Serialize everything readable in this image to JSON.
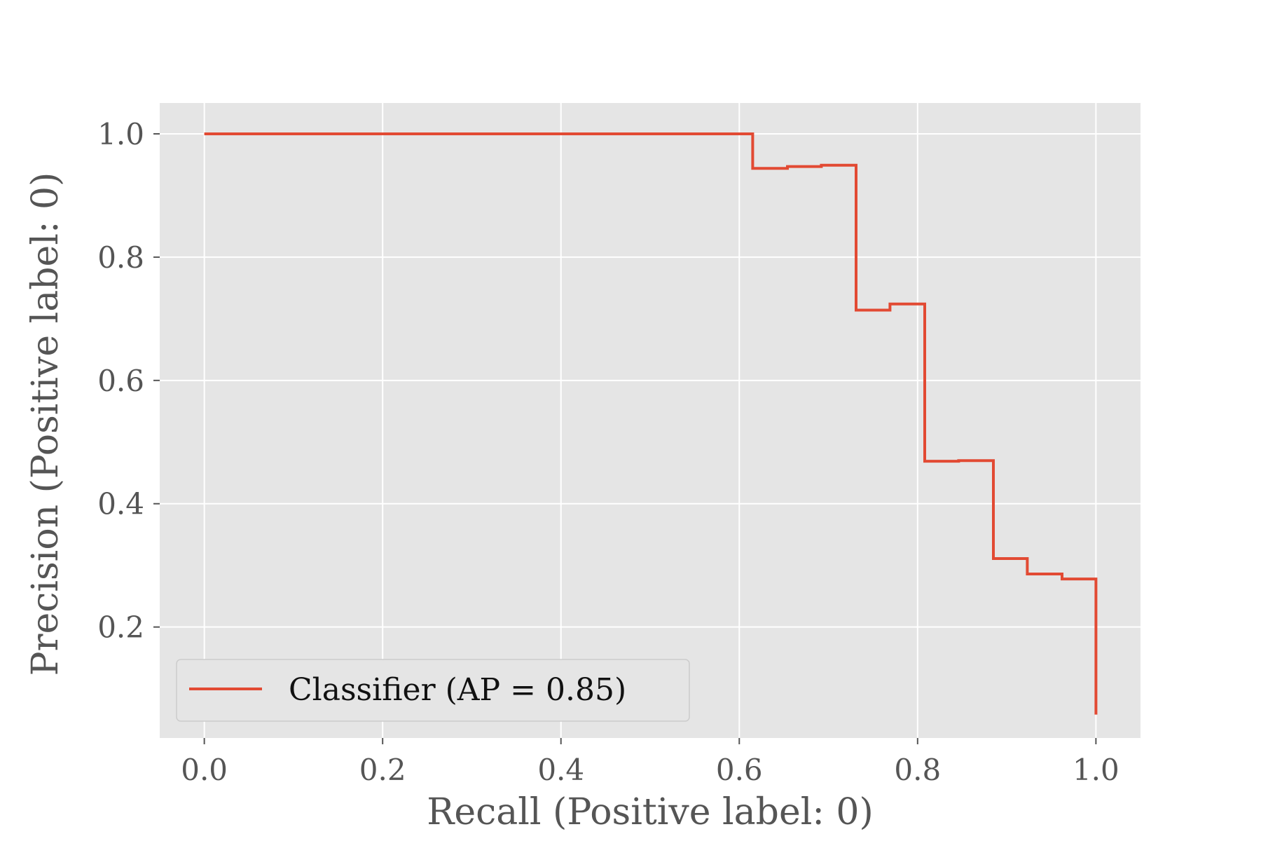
{
  "chart_data": {
    "type": "line",
    "step": true,
    "style": "ggplot",
    "xlabel": "Recall (Positive label: 0)",
    "ylabel": "Precision (Positive label: 0)",
    "xlim": [
      -0.05,
      1.05
    ],
    "ylim": [
      0.02,
      1.05
    ],
    "xticks": [
      0.0,
      0.2,
      0.4,
      0.6,
      0.8,
      1.0
    ],
    "xtick_labels": [
      "0.0",
      "0.2",
      "0.4",
      "0.6",
      "0.8",
      "1.0"
    ],
    "yticks": [
      0.2,
      0.4,
      0.6,
      0.8,
      1.0
    ],
    "ytick_labels": [
      "0.2",
      "0.4",
      "0.6",
      "0.8",
      "1.0"
    ],
    "grid": true,
    "legend_position": "lower-left",
    "series": [
      {
        "name": "Classifier (AP = 0.85)",
        "color": "#E24A33",
        "points": [
          [
            0.0,
            1.0
          ],
          [
            0.615,
            1.0
          ],
          [
            0.615,
            0.944
          ],
          [
            0.654,
            0.944
          ],
          [
            0.654,
            0.947
          ],
          [
            0.692,
            0.947
          ],
          [
            0.692,
            0.949
          ],
          [
            0.731,
            0.949
          ],
          [
            0.731,
            0.714
          ],
          [
            0.769,
            0.714
          ],
          [
            0.769,
            0.724
          ],
          [
            0.808,
            0.724
          ],
          [
            0.808,
            0.469
          ],
          [
            0.846,
            0.469
          ],
          [
            0.846,
            0.47
          ],
          [
            0.885,
            0.47
          ],
          [
            0.885,
            0.311
          ],
          [
            0.923,
            0.311
          ],
          [
            0.923,
            0.286
          ],
          [
            0.962,
            0.286
          ],
          [
            0.962,
            0.278
          ],
          [
            1.0,
            0.278
          ],
          [
            1.0,
            0.058
          ]
        ]
      }
    ]
  }
}
